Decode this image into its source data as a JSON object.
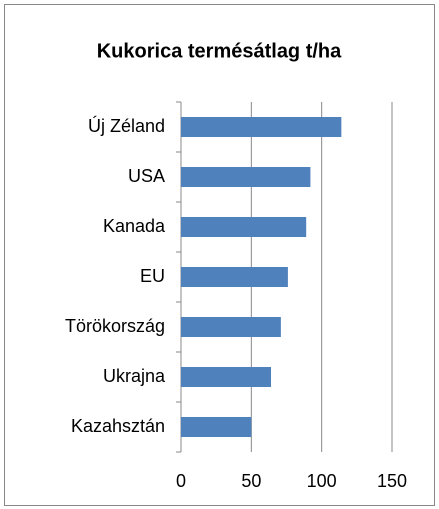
{
  "chart_data": {
    "type": "barh",
    "title": "Kukorica termésátlag t/ha",
    "categories": [
      "Új Zéland",
      "USA",
      "Kanada",
      "EU",
      "Törökország",
      "Ukrajna",
      "Kazahsztán"
    ],
    "values": [
      114,
      92,
      89,
      76,
      71,
      64,
      50
    ],
    "color": "#4f81bd",
    "xlim": [
      0,
      150
    ],
    "xticks": [
      0,
      50,
      100,
      150
    ],
    "grid": true
  }
}
